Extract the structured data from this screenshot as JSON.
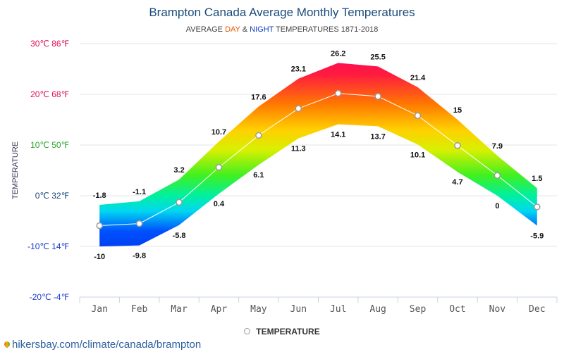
{
  "chart_data": {
    "type": "area",
    "title": "Brampton Canada Average Monthly Temperatures",
    "subtitle": {
      "prefix": "AVERAGE",
      "day": "DAY",
      "amp": "&",
      "night": "NIGHT",
      "suffix": "TEMPERATURES 1871-2018"
    },
    "ylabel": "TEMPERATURE",
    "ylim": [
      -20,
      30
    ],
    "yticks": [
      {
        "value": 30,
        "label": "30℃ 86℉",
        "color": "#e0105a"
      },
      {
        "value": 20,
        "label": "20℃ 68℉",
        "color": "#e0105a"
      },
      {
        "value": 10,
        "label": "10℃ 50℉",
        "color": "#2aa52a"
      },
      {
        "value": 0,
        "label": "0℃ 32℉",
        "color": "#1a4a7a"
      },
      {
        "value": -10,
        "label": "-10℃ 14℉",
        "color": "#1a3acc"
      },
      {
        "value": -20,
        "label": "-20℃ -4℉",
        "color": "#1a3acc"
      }
    ],
    "categories": [
      "Jan",
      "Feb",
      "Mar",
      "Apr",
      "May",
      "Jun",
      "Jul",
      "Aug",
      "Sep",
      "Oct",
      "Nov",
      "Dec"
    ],
    "series": [
      {
        "key": "day",
        "values": [
          -1.8,
          -1.1,
          3.2,
          10.7,
          17.6,
          23.1,
          26.2,
          25.5,
          21.4,
          15,
          7.9,
          1.5
        ]
      },
      {
        "key": "night",
        "values": [
          -10,
          -9.8,
          -5.8,
          0.4,
          6.1,
          11.3,
          14.1,
          13.7,
          10.1,
          4.7,
          0,
          -5.9
        ]
      },
      {
        "name": "TEMPERATURE",
        "values": [
          -5.9,
          -5.5,
          -1.3,
          5.6,
          11.9,
          17.2,
          20.2,
          19.6,
          15.8,
          9.9,
          4.0,
          -2.2
        ]
      }
    ],
    "legend": {
      "label": "TEMPERATURE",
      "position": "bottom-center"
    },
    "grid": true
  },
  "footer": {
    "link_text": "hikersbay.com/climate/canada/brampton",
    "icon": "map-pin-icon"
  }
}
